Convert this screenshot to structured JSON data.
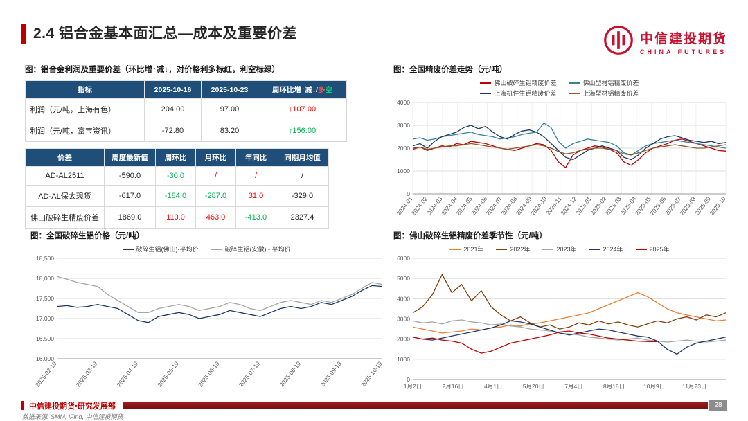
{
  "header": {
    "title": "2.4 铝合金基本面汇总—成本及重要价差"
  },
  "logo": {
    "cn": "中信建投期货",
    "en": "CHINA FUTURES",
    "brand_color": "#C8102E"
  },
  "tables": {
    "caption": "图：铝合金利润及重要价差（环比增↑减↓，对价格利多标红，利空标绿）",
    "colors": {
      "up_red": "#FF0000",
      "down_green": "#00B050",
      "header_bg": "#1F4E79"
    },
    "profit": {
      "left_first": true,
      "widths": [
        172,
        82,
        82,
        128
      ],
      "headers": [
        "指标",
        "2025-10-16",
        "2025-10-23",
        {
          "parts": [
            {
              "t": "周环比增↑减↓/"
            },
            {
              "t": "多",
              "c": "#FF5050"
            },
            {
              "t": "空",
              "c": "#00E06C"
            }
          ]
        }
      ],
      "rows": [
        [
          {
            "t": "利润（元/吨，上海有色）"
          },
          {
            "t": "204.00"
          },
          {
            "t": "97.00"
          },
          {
            "t": "↓107.00",
            "c": "#FF0000"
          }
        ],
        [
          {
            "t": "利润（元/吨，富宝资讯）"
          },
          {
            "t": "-72.80"
          },
          {
            "t": "83.20"
          },
          {
            "t": "↑156.00",
            "c": "#00B050"
          }
        ]
      ]
    },
    "spread": {
      "left_first": false,
      "widths": [
        114,
        74,
        58,
        58,
        58,
        76
      ],
      "headers": [
        "价差",
        "周度最新值",
        "周环比",
        "月环比",
        "年同比",
        "同期月均值"
      ],
      "rows": [
        [
          {
            "t": "AD-AL2511"
          },
          {
            "t": "-590.0"
          },
          {
            "t": "-30.0",
            "c": "#00B050"
          },
          {
            "t": "/",
            "c": "#FF0000"
          },
          {
            "t": "/",
            "c": "#FF0000"
          },
          {
            "t": "/"
          }
        ],
        [
          {
            "t": "AD-AL保太现货"
          },
          {
            "t": "-617.0"
          },
          {
            "t": "-184.0",
            "c": "#00B050"
          },
          {
            "t": "-287.0",
            "c": "#00B050"
          },
          {
            "t": "31.0",
            "c": "#FF0000"
          },
          {
            "t": "-329.0"
          }
        ],
        [
          {
            "t": "佛山破碎生精废价差"
          },
          {
            "t": "1869.0"
          },
          {
            "t": "110.0",
            "c": "#FF0000"
          },
          {
            "t": "463.0",
            "c": "#FF0000"
          },
          {
            "t": "-413.0",
            "c": "#00B050"
          },
          {
            "t": "2327.4"
          }
        ]
      ]
    }
  },
  "chart_data": [
    {
      "type": "line",
      "title": "图：全国精废价差走势（元/吨）",
      "ylim": [
        0,
        4000
      ],
      "ytick_step": 1000,
      "y_comma": false,
      "rotate_x": true,
      "x_grid": true,
      "ml": 36,
      "mb": 40,
      "legend_position": "top",
      "x_labels": [
        "2024-01",
        "2024-02",
        "2024-03",
        "2024-04",
        "2024-05",
        "2024-06",
        "2024-07",
        "2024-08",
        "2024-09",
        "2024-10",
        "2024-11",
        "2024-12",
        "2025-01",
        "2025-02",
        "2025-03",
        "2025-04",
        "2025-05",
        "2025-06",
        "2025-07",
        "2025-08",
        "2025-09",
        "2025-10"
      ],
      "series": [
        {
          "name": "佛山破碎生铝精废价差",
          "color": "#C00000",
          "values": [
            1950,
            2050,
            1900,
            2000,
            2100,
            2050,
            2200,
            2150,
            2300,
            2250,
            2200,
            2100,
            2000,
            1950,
            1900,
            2000,
            2100,
            2200,
            2150,
            1900,
            1400,
            1150,
            1700,
            1900,
            2000,
            2100,
            2050,
            1950,
            1800,
            1400,
            1250,
            1500,
            1800,
            2000,
            2100,
            2200,
            2350,
            2400,
            2300,
            2200,
            2100,
            2000,
            1900,
            1869
          ]
        },
        {
          "name": "佛山型材铝精废价差",
          "color": "#31849B",
          "values": [
            2400,
            2450,
            2350,
            2400,
            2500,
            2550,
            2600,
            2650,
            2700,
            2600,
            2550,
            2500,
            2400,
            2450,
            2500,
            2600,
            2650,
            2700,
            3100,
            2900,
            2300,
            2000,
            2200,
            2300,
            2400,
            2350,
            2300,
            2250,
            2100,
            1800,
            1700,
            1900,
            2100,
            2200,
            2250,
            2300,
            2350,
            2300,
            2250,
            2200,
            2150,
            2100,
            2050,
            2000
          ]
        },
        {
          "name": "上海机件生铝精废价差",
          "color": "#1F3864",
          "values": [
            2100,
            2200,
            2000,
            2300,
            2500,
            2600,
            2700,
            2900,
            3000,
            2850,
            2950,
            2700,
            2500,
            2400,
            2600,
            2750,
            2800,
            2700,
            2500,
            2200,
            1900,
            1600,
            1500,
            1700,
            1900,
            2000,
            2100,
            2000,
            1900,
            1600,
            1500,
            1700,
            2000,
            2200,
            2400,
            2500,
            2550,
            2450,
            2350,
            2300,
            2250,
            2300,
            2200,
            2250
          ]
        },
        {
          "name": "上海型材铝精废价差",
          "color": "#8A5A2A",
          "values": [
            2000,
            2050,
            1950,
            2000,
            2050,
            2100,
            2100,
            2150,
            2200,
            2150,
            2100,
            2050,
            2000,
            1950,
            2000,
            2050,
            2100,
            2150,
            2100,
            2000,
            1850,
            1750,
            1800,
            1900,
            1950,
            2000,
            2000,
            1950,
            1900,
            1750,
            1700,
            1800,
            1900,
            2000,
            2050,
            2100,
            2150,
            2100,
            2050,
            2000,
            2000,
            2050,
            2100,
            2150
          ]
        }
      ]
    },
    {
      "type": "line",
      "title": "图：全国破碎生铝价格（元/吨）",
      "ylim": [
        16000,
        18500
      ],
      "ytick_step": 500,
      "y_comma": true,
      "rotate_x": true,
      "x_grid": false,
      "ml": 46,
      "mb": 50,
      "legend_position": "top",
      "x_labels": [
        "2025-02-19",
        "2025-03-19",
        "2025-04-19",
        "2025-05-19",
        "2025-06-19",
        "2025-07-19",
        "2025-08-19",
        "2025-09-19",
        "2025-10-19"
      ],
      "series": [
        {
          "name": "破碎生铝(佛山)-平均价",
          "color": "#1F3864",
          "values": [
            17300,
            17320,
            17280,
            17300,
            17350,
            17300,
            17250,
            17100,
            16950,
            16900,
            17050,
            17100,
            17150,
            17100,
            17000,
            17050,
            17100,
            17200,
            17150,
            17100,
            17050,
            17150,
            17250,
            17300,
            17250,
            17300,
            17400,
            17350,
            17450,
            17550,
            17700,
            17820,
            17800
          ]
        },
        {
          "name": "破碎生铝(安徽) - 平均价",
          "color": "#A6A6A6",
          "values": [
            18050,
            17980,
            17900,
            17850,
            17800,
            17600,
            17450,
            17300,
            17150,
            17150,
            17250,
            17300,
            17350,
            17300,
            17200,
            17250,
            17300,
            17400,
            17350,
            17250,
            17200,
            17300,
            17400,
            17450,
            17400,
            17350,
            17450,
            17400,
            17500,
            17600,
            17750,
            17900,
            17850
          ]
        }
      ]
    },
    {
      "type": "line",
      "title": "图：佛山破碎生铝精废价差季节性（元/吨）",
      "ylim": [
        0,
        6000
      ],
      "ytick_step": 1000,
      "y_comma": false,
      "rotate_x": false,
      "x_grid": false,
      "ml": 36,
      "mb": 20,
      "x_span": 0.9,
      "legend_position": "top",
      "x_labels": [
        "1月2日",
        "2月16日",
        "4月1日",
        "5月20日",
        "7月4日",
        "8月18日",
        "10月9日",
        "11月23日"
      ],
      "series": [
        {
          "name": "2021年",
          "color": "#ED7D31",
          "values": [
            2600,
            2500,
            2400,
            2300,
            2350,
            2400,
            2500,
            2450,
            2550,
            2600,
            2700,
            2650,
            2750,
            2800,
            2900,
            3000,
            3100,
            3200,
            3300,
            3500,
            3700,
            3900,
            4100,
            4300,
            4100,
            3800,
            3500,
            3300,
            3200,
            3100,
            3000,
            2900,
            2950
          ]
        },
        {
          "name": "2022年",
          "color": "#843C0C",
          "values": [
            3300,
            3600,
            4200,
            5200,
            4300,
            4700,
            3900,
            4400,
            3600,
            3200,
            2900,
            3100,
            2800,
            2600,
            2700,
            2500,
            2600,
            2800,
            2700,
            2900,
            2750,
            2850,
            2700,
            2600,
            2750,
            2900,
            2800,
            3000,
            3100,
            2950,
            3200,
            3100,
            3300
          ]
        },
        {
          "name": "2023年",
          "color": "#A5A5A5",
          "values": [
            2900,
            2800,
            2850,
            2750,
            2900,
            2950,
            2850,
            2800,
            2700,
            2750,
            2650,
            2600,
            2500,
            2450,
            2400,
            2300,
            2250,
            2200,
            2100,
            2050,
            2000,
            1950,
            2000,
            2050,
            1950,
            1900,
            1850,
            1900,
            1950,
            1900,
            1850,
            1900,
            1950
          ]
        },
        {
          "name": "2024年",
          "color": "#1F3864",
          "values": [
            2100,
            2000,
            1950,
            2050,
            2150,
            2250,
            2350,
            2450,
            2550,
            2700,
            2900,
            2850,
            2750,
            2600,
            2450,
            2300,
            2200,
            2300,
            2400,
            2500,
            2450,
            2350,
            2250,
            2150,
            2100,
            1900,
            1500,
            1250,
            1600,
            1800,
            1900,
            2000,
            2100
          ]
        },
        {
          "name": "2025年",
          "color": "#C00000",
          "values": [
            2100,
            2000,
            2050,
            1950,
            1900,
            1800,
            1500,
            1300,
            1400,
            1600,
            1800,
            1900,
            2000,
            2100,
            2200,
            2350,
            2400,
            2300,
            2250,
            2150,
            2050,
            2000,
            1950,
            1900,
            1880,
            1869,
            null,
            null,
            null,
            null,
            null,
            null,
            null
          ]
        }
      ]
    }
  ],
  "footer": {
    "department": "中信建投期货•研究发展部",
    "page": "28",
    "source": "数据来源: SMM, iFind, 中信建投期货"
  }
}
